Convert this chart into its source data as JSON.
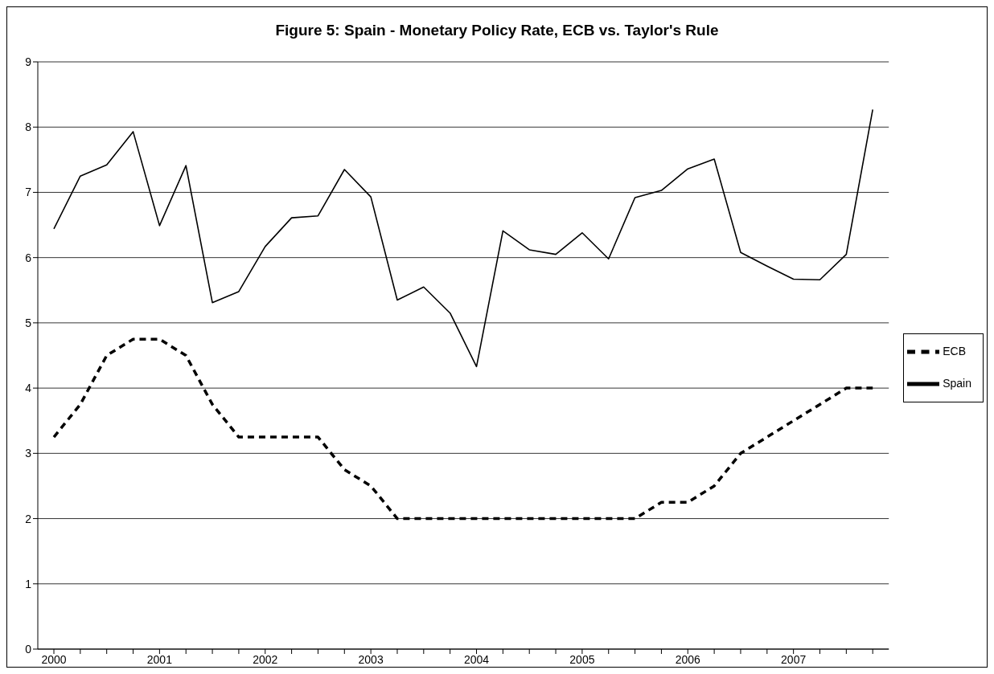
{
  "chart_data": {
    "type": "line",
    "title": "Figure 5: Spain - Monetary Policy Rate, ECB vs. Taylor's Rule",
    "categories": [
      "2000",
      null,
      null,
      null,
      "2001",
      null,
      null,
      null,
      "2002",
      null,
      null,
      null,
      "2003",
      null,
      null,
      null,
      "2004",
      null,
      null,
      null,
      "2005",
      null,
      null,
      null,
      "2006",
      null,
      null,
      null,
      "2007",
      null,
      null,
      null
    ],
    "series": [
      {
        "name": "Spain",
        "color": "#000000",
        "line_style": "solid",
        "values": [
          6.44,
          7.25,
          7.42,
          7.93,
          6.49,
          7.41,
          5.31,
          5.48,
          6.17,
          6.61,
          6.64,
          7.35,
          6.93,
          5.35,
          5.55,
          5.15,
          4.33,
          6.41,
          6.12,
          6.05,
          6.38,
          5.98,
          6.92,
          7.03,
          7.36,
          7.51,
          6.08,
          5.87,
          5.67,
          5.66,
          6.05,
          8.27
        ]
      },
      {
        "name": "ECB",
        "color": "#000000",
        "line_style": "dashed",
        "values": [
          3.25,
          3.75,
          4.5,
          4.75,
          4.75,
          4.5,
          3.75,
          3.25,
          3.25,
          3.25,
          3.25,
          2.75,
          2.5,
          2.0,
          2.0,
          2.0,
          2.0,
          2.0,
          2.0,
          2.0,
          2.0,
          2.0,
          2.0,
          2.25,
          2.25,
          2.5,
          3.0,
          3.25,
          3.5,
          3.75,
          4.0,
          4.0
        ]
      }
    ],
    "ylim": [
      0,
      9
    ],
    "yticks": [
      0,
      1,
      2,
      3,
      4,
      5,
      6,
      7,
      8,
      9
    ],
    "grid": "y",
    "legend": "right",
    "marker": "none"
  }
}
